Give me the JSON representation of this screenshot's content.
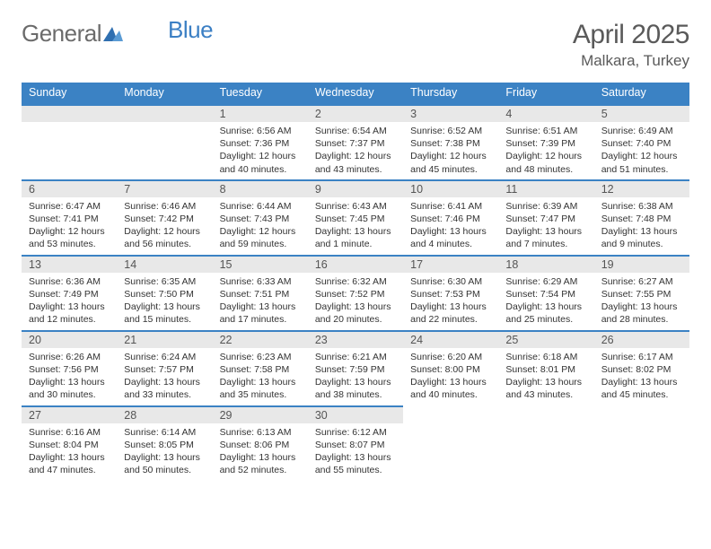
{
  "brand": {
    "text1": "General",
    "text2": "Blue",
    "color_gray": "#6b6b6b",
    "color_blue": "#3b7fc4"
  },
  "header": {
    "month": "April 2025",
    "location": "Malkara, Turkey"
  },
  "calendar": {
    "header_bg": "#3b82c4",
    "header_fg": "#ffffff",
    "daynum_bg": "#e8e8e8",
    "border_color": "#3b82c4",
    "daynames": [
      "Sunday",
      "Monday",
      "Tuesday",
      "Wednesday",
      "Thursday",
      "Friday",
      "Saturday"
    ],
    "weeks": [
      [
        null,
        null,
        {
          "n": "1",
          "sr": "6:56 AM",
          "ss": "7:36 PM",
          "dl": "12 hours and 40 minutes."
        },
        {
          "n": "2",
          "sr": "6:54 AM",
          "ss": "7:37 PM",
          "dl": "12 hours and 43 minutes."
        },
        {
          "n": "3",
          "sr": "6:52 AM",
          "ss": "7:38 PM",
          "dl": "12 hours and 45 minutes."
        },
        {
          "n": "4",
          "sr": "6:51 AM",
          "ss": "7:39 PM",
          "dl": "12 hours and 48 minutes."
        },
        {
          "n": "5",
          "sr": "6:49 AM",
          "ss": "7:40 PM",
          "dl": "12 hours and 51 minutes."
        }
      ],
      [
        {
          "n": "6",
          "sr": "6:47 AM",
          "ss": "7:41 PM",
          "dl": "12 hours and 53 minutes."
        },
        {
          "n": "7",
          "sr": "6:46 AM",
          "ss": "7:42 PM",
          "dl": "12 hours and 56 minutes."
        },
        {
          "n": "8",
          "sr": "6:44 AM",
          "ss": "7:43 PM",
          "dl": "12 hours and 59 minutes."
        },
        {
          "n": "9",
          "sr": "6:43 AM",
          "ss": "7:45 PM",
          "dl": "13 hours and 1 minute."
        },
        {
          "n": "10",
          "sr": "6:41 AM",
          "ss": "7:46 PM",
          "dl": "13 hours and 4 minutes."
        },
        {
          "n": "11",
          "sr": "6:39 AM",
          "ss": "7:47 PM",
          "dl": "13 hours and 7 minutes."
        },
        {
          "n": "12",
          "sr": "6:38 AM",
          "ss": "7:48 PM",
          "dl": "13 hours and 9 minutes."
        }
      ],
      [
        {
          "n": "13",
          "sr": "6:36 AM",
          "ss": "7:49 PM",
          "dl": "13 hours and 12 minutes."
        },
        {
          "n": "14",
          "sr": "6:35 AM",
          "ss": "7:50 PM",
          "dl": "13 hours and 15 minutes."
        },
        {
          "n": "15",
          "sr": "6:33 AM",
          "ss": "7:51 PM",
          "dl": "13 hours and 17 minutes."
        },
        {
          "n": "16",
          "sr": "6:32 AM",
          "ss": "7:52 PM",
          "dl": "13 hours and 20 minutes."
        },
        {
          "n": "17",
          "sr": "6:30 AM",
          "ss": "7:53 PM",
          "dl": "13 hours and 22 minutes."
        },
        {
          "n": "18",
          "sr": "6:29 AM",
          "ss": "7:54 PM",
          "dl": "13 hours and 25 minutes."
        },
        {
          "n": "19",
          "sr": "6:27 AM",
          "ss": "7:55 PM",
          "dl": "13 hours and 28 minutes."
        }
      ],
      [
        {
          "n": "20",
          "sr": "6:26 AM",
          "ss": "7:56 PM",
          "dl": "13 hours and 30 minutes."
        },
        {
          "n": "21",
          "sr": "6:24 AM",
          "ss": "7:57 PM",
          "dl": "13 hours and 33 minutes."
        },
        {
          "n": "22",
          "sr": "6:23 AM",
          "ss": "7:58 PM",
          "dl": "13 hours and 35 minutes."
        },
        {
          "n": "23",
          "sr": "6:21 AM",
          "ss": "7:59 PM",
          "dl": "13 hours and 38 minutes."
        },
        {
          "n": "24",
          "sr": "6:20 AM",
          "ss": "8:00 PM",
          "dl": "13 hours and 40 minutes."
        },
        {
          "n": "25",
          "sr": "6:18 AM",
          "ss": "8:01 PM",
          "dl": "13 hours and 43 minutes."
        },
        {
          "n": "26",
          "sr": "6:17 AM",
          "ss": "8:02 PM",
          "dl": "13 hours and 45 minutes."
        }
      ],
      [
        {
          "n": "27",
          "sr": "6:16 AM",
          "ss": "8:04 PM",
          "dl": "13 hours and 47 minutes."
        },
        {
          "n": "28",
          "sr": "6:14 AM",
          "ss": "8:05 PM",
          "dl": "13 hours and 50 minutes."
        },
        {
          "n": "29",
          "sr": "6:13 AM",
          "ss": "8:06 PM",
          "dl": "13 hours and 52 minutes."
        },
        {
          "n": "30",
          "sr": "6:12 AM",
          "ss": "8:07 PM",
          "dl": "13 hours and 55 minutes."
        },
        null,
        null,
        null
      ]
    ],
    "labels": {
      "sunrise": "Sunrise:",
      "sunset": "Sunset:",
      "daylight": "Daylight:"
    }
  }
}
